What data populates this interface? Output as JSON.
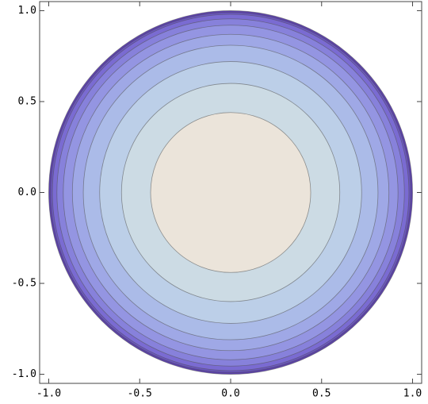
{
  "chart_data": {
    "type": "contour",
    "contours": [
      {
        "radius": 1.0,
        "color": "#5b40ad"
      },
      {
        "radius": 0.99,
        "color": "#6a55c2"
      },
      {
        "radius": 0.98,
        "color": "#7a6bd2"
      },
      {
        "radius": 0.955,
        "color": "#8781db"
      },
      {
        "radius": 0.92,
        "color": "#9495e2"
      },
      {
        "radius": 0.87,
        "color": "#9fa8e6"
      },
      {
        "radius": 0.81,
        "color": "#abbbe8"
      },
      {
        "radius": 0.72,
        "color": "#bccfe8"
      },
      {
        "radius": 0.6,
        "color": "#ccdbe4"
      },
      {
        "radius": 0.44,
        "color": "#ebe4da"
      }
    ],
    "xlim": [
      -1.05,
      1.05
    ],
    "ylim": [
      -1.05,
      1.05
    ],
    "xticks": [
      {
        "value": -1,
        "label": "-1.0"
      },
      {
        "value": -0.5,
        "label": "-0.5"
      },
      {
        "value": 0,
        "label": "0.0"
      },
      {
        "value": 0.5,
        "label": "0.5"
      },
      {
        "value": 1,
        "label": "1.0"
      }
    ],
    "yticks": [
      {
        "value": -1,
        "label": "-1.0"
      },
      {
        "value": -0.5,
        "label": "-0.5"
      },
      {
        "value": 0,
        "label": "0.0"
      },
      {
        "value": 0.5,
        "label": "0.5"
      },
      {
        "value": 1,
        "label": "1.0"
      }
    ]
  }
}
